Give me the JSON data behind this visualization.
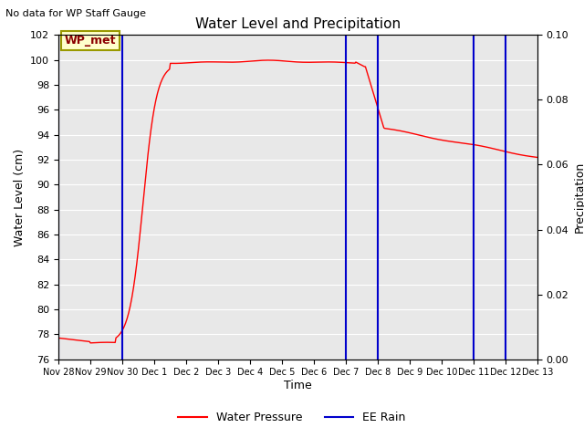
{
  "title": "Water Level and Precipitation",
  "top_left_text": "No data for WP Staff Gauge",
  "xlabel": "Time",
  "ylabel_left": "Water Level (cm)",
  "ylabel_right": "Precipitation",
  "legend_label_red": "Water Pressure",
  "legend_label_blue": "EE Rain",
  "box_label": "WP_met",
  "ylim_left": [
    76,
    102
  ],
  "ylim_right": [
    0.0,
    0.1
  ],
  "yticks_left": [
    76,
    78,
    80,
    82,
    84,
    86,
    88,
    90,
    92,
    94,
    96,
    98,
    100,
    102
  ],
  "yticks_right": [
    0.0,
    0.02,
    0.04,
    0.06,
    0.08,
    0.1
  ],
  "xtick_labels": [
    "Nov 28",
    "Nov 29",
    "Nov 30",
    "Dec 1",
    "Dec 2",
    "Dec 3",
    "Dec 4",
    "Dec 5",
    "Dec 6",
    "Dec 7",
    "Dec 8",
    "Dec 9",
    "Dec 10",
    "Dec 11",
    "Dec 12",
    "Dec 13"
  ],
  "bg_color": "#ffffff",
  "plot_bg_color": "#e8e8e8",
  "line_color_red": "#ff0000",
  "line_color_blue": "#0000cc",
  "grid_color": "#ffffff",
  "box_facecolor": "#ffffcc",
  "box_edgecolor": "#999900",
  "vline_days": [
    0,
    2,
    9,
    10,
    13,
    14
  ]
}
